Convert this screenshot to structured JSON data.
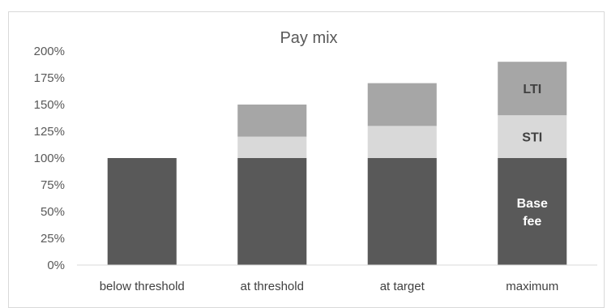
{
  "chart_data": {
    "type": "bar",
    "stacked": true,
    "title": "Pay mix",
    "xlabel": "",
    "ylabel": "",
    "categories": [
      "below threshold",
      "at threshold",
      "at target",
      "maximum"
    ],
    "y_ticks": [
      "0%",
      "25%",
      "50%",
      "75%",
      "100%",
      "125%",
      "150%",
      "175%",
      "200%"
    ],
    "ylim": [
      0,
      200
    ],
    "grid": false,
    "legend": "none",
    "series": [
      {
        "key": "base",
        "values": [
          100,
          100,
          100,
          100
        ],
        "color": "#595959"
      },
      {
        "key": "sti",
        "values": [
          0,
          20,
          30,
          40
        ],
        "color": "#d9d9d9"
      },
      {
        "key": "lti",
        "values": [
          0,
          30,
          40,
          50
        ],
        "color": "#a6a6a6"
      }
    ],
    "annotations": [
      {
        "category": "maximum",
        "series": "base",
        "lines": [
          "Base",
          "fee"
        ],
        "style": "light"
      },
      {
        "category": "maximum",
        "series": "sti",
        "lines": [
          "STI"
        ],
        "style": "dark"
      },
      {
        "category": "maximum",
        "series": "lti",
        "lines": [
          "LTI"
        ],
        "style": "dark"
      }
    ]
  }
}
